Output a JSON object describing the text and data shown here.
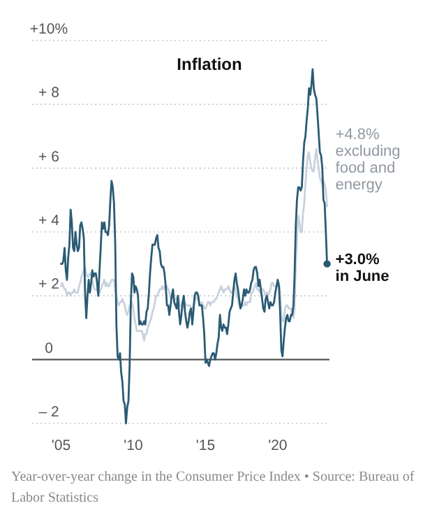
{
  "chart_data": {
    "type": "line",
    "title": "Inflation",
    "x": [
      "2005-01",
      "2005-02",
      "2005-03",
      "2005-04",
      "2005-05",
      "2005-06",
      "2005-07",
      "2005-08",
      "2005-09",
      "2005-10",
      "2005-11",
      "2005-12",
      "2006-01",
      "2006-02",
      "2006-03",
      "2006-04",
      "2006-05",
      "2006-06",
      "2006-07",
      "2006-08",
      "2006-09",
      "2006-10",
      "2006-11",
      "2006-12",
      "2007-01",
      "2007-02",
      "2007-03",
      "2007-04",
      "2007-05",
      "2007-06",
      "2007-07",
      "2007-08",
      "2007-09",
      "2007-10",
      "2007-11",
      "2007-12",
      "2008-01",
      "2008-02",
      "2008-03",
      "2008-04",
      "2008-05",
      "2008-06",
      "2008-07",
      "2008-08",
      "2008-09",
      "2008-10",
      "2008-11",
      "2008-12",
      "2009-01",
      "2009-02",
      "2009-03",
      "2009-04",
      "2009-05",
      "2009-06",
      "2009-07",
      "2009-08",
      "2009-09",
      "2009-10",
      "2009-11",
      "2009-12",
      "2010-01",
      "2010-02",
      "2010-03",
      "2010-04",
      "2010-05",
      "2010-06",
      "2010-07",
      "2010-08",
      "2010-09",
      "2010-10",
      "2010-11",
      "2010-12",
      "2011-01",
      "2011-02",
      "2011-03",
      "2011-04",
      "2011-05",
      "2011-06",
      "2011-07",
      "2011-08",
      "2011-09",
      "2011-10",
      "2011-11",
      "2011-12",
      "2012-01",
      "2012-02",
      "2012-03",
      "2012-04",
      "2012-05",
      "2012-06",
      "2012-07",
      "2012-08",
      "2012-09",
      "2012-10",
      "2012-11",
      "2012-12",
      "2013-01",
      "2013-02",
      "2013-03",
      "2013-04",
      "2013-05",
      "2013-06",
      "2013-07",
      "2013-08",
      "2013-09",
      "2013-10",
      "2013-11",
      "2013-12",
      "2014-01",
      "2014-02",
      "2014-03",
      "2014-04",
      "2014-05",
      "2014-06",
      "2014-07",
      "2014-08",
      "2014-09",
      "2014-10",
      "2014-11",
      "2014-12",
      "2015-01",
      "2015-02",
      "2015-03",
      "2015-04",
      "2015-05",
      "2015-06",
      "2015-07",
      "2015-08",
      "2015-09",
      "2015-10",
      "2015-11",
      "2015-12",
      "2016-01",
      "2016-02",
      "2016-03",
      "2016-04",
      "2016-05",
      "2016-06",
      "2016-07",
      "2016-08",
      "2016-09",
      "2016-10",
      "2016-11",
      "2016-12",
      "2017-01",
      "2017-02",
      "2017-03",
      "2017-04",
      "2017-05",
      "2017-06",
      "2017-07",
      "2017-08",
      "2017-09",
      "2017-10",
      "2017-11",
      "2017-12",
      "2018-01",
      "2018-02",
      "2018-03",
      "2018-04",
      "2018-05",
      "2018-06",
      "2018-07",
      "2018-08",
      "2018-09",
      "2018-10",
      "2018-11",
      "2018-12",
      "2019-01",
      "2019-02",
      "2019-03",
      "2019-04",
      "2019-05",
      "2019-06",
      "2019-07",
      "2019-08",
      "2019-09",
      "2019-10",
      "2019-11",
      "2019-12",
      "2020-01",
      "2020-02",
      "2020-03",
      "2020-04",
      "2020-05",
      "2020-06",
      "2020-07",
      "2020-08",
      "2020-09",
      "2020-10",
      "2020-11",
      "2020-12",
      "2021-01",
      "2021-02",
      "2021-03",
      "2021-04",
      "2021-05",
      "2021-06",
      "2021-07",
      "2021-08",
      "2021-09",
      "2021-10",
      "2021-11",
      "2021-12",
      "2022-01",
      "2022-02",
      "2022-03",
      "2022-04",
      "2022-05",
      "2022-06",
      "2022-07",
      "2022-08",
      "2022-09",
      "2022-10",
      "2022-11",
      "2022-12",
      "2023-01",
      "2023-02",
      "2023-03",
      "2023-04",
      "2023-05",
      "2023-06"
    ],
    "series": [
      {
        "color": "#c8d2de",
        "values": [
          2.3,
          2.4,
          2.3,
          2.2,
          2.2,
          2.0,
          2.1,
          2.1,
          2.0,
          2.1,
          2.1,
          2.2,
          2.1,
          2.1,
          2.1,
          2.3,
          2.4,
          2.6,
          2.7,
          2.8,
          2.9,
          2.7,
          2.6,
          2.6,
          2.7,
          2.7,
          2.5,
          2.3,
          2.2,
          2.2,
          2.2,
          2.1,
          2.1,
          2.2,
          2.3,
          2.4,
          2.5,
          2.3,
          2.4,
          2.3,
          2.3,
          2.4,
          2.5,
          2.5,
          2.5,
          2.2,
          2.0,
          1.8,
          1.7,
          1.8,
          1.8,
          1.9,
          1.8,
          1.7,
          1.5,
          1.4,
          1.5,
          1.7,
          1.7,
          1.8,
          1.6,
          1.3,
          1.1,
          0.9,
          0.9,
          0.9,
          0.9,
          0.9,
          0.8,
          0.6,
          0.8,
          0.8,
          1.0,
          1.1,
          1.2,
          1.3,
          1.5,
          1.6,
          1.8,
          2.0,
          2.0,
          2.1,
          2.2,
          2.2,
          2.3,
          2.2,
          2.3,
          2.3,
          2.3,
          2.2,
          2.1,
          1.9,
          2.0,
          2.0,
          1.9,
          1.9,
          1.9,
          2.0,
          1.9,
          1.7,
          1.7,
          1.6,
          1.7,
          1.8,
          1.7,
          1.7,
          1.7,
          1.7,
          1.6,
          1.6,
          1.7,
          1.8,
          2.0,
          1.9,
          1.9,
          1.7,
          1.7,
          1.8,
          1.7,
          1.6,
          1.6,
          1.7,
          1.8,
          1.8,
          1.7,
          1.8,
          1.8,
          1.8,
          1.9,
          1.9,
          2.0,
          2.1,
          2.2,
          2.3,
          2.2,
          2.1,
          2.2,
          2.2,
          2.2,
          2.3,
          2.2,
          2.1,
          2.1,
          2.2,
          2.3,
          2.2,
          2.0,
          1.9,
          1.7,
          1.7,
          1.7,
          1.7,
          1.7,
          1.8,
          1.7,
          1.8,
          1.8,
          1.8,
          2.1,
          2.1,
          2.2,
          2.3,
          2.4,
          2.2,
          2.2,
          2.1,
          2.2,
          2.2,
          2.2,
          2.1,
          2.0,
          2.1,
          2.0,
          2.1,
          2.2,
          2.4,
          2.4,
          2.3,
          2.3,
          2.3,
          2.3,
          2.4,
          2.1,
          1.4,
          1.2,
          1.2,
          1.6,
          1.7,
          1.7,
          1.6,
          1.6,
          1.6,
          1.4,
          1.3,
          1.6,
          3.0,
          3.8,
          4.5,
          4.3,
          4.0,
          4.0,
          4.6,
          4.9,
          5.5,
          6.0,
          6.4,
          6.5,
          6.2,
          6.0,
          5.9,
          5.9,
          6.3,
          6.6,
          6.3,
          6.0,
          5.7,
          5.6,
          5.5,
          5.6,
          5.5,
          5.3,
          4.8
        ]
      },
      {
        "color": "#2b5b74",
        "values": [
          3.0,
          3.0,
          3.1,
          3.5,
          2.8,
          2.5,
          3.2,
          3.6,
          4.7,
          4.3,
          3.5,
          3.4,
          4.0,
          3.6,
          3.4,
          3.5,
          4.2,
          4.3,
          4.1,
          3.8,
          2.1,
          1.3,
          2.0,
          2.5,
          2.1,
          2.4,
          2.8,
          2.6,
          2.7,
          2.7,
          2.4,
          2.0,
          2.8,
          3.5,
          4.3,
          4.1,
          4.3,
          4.0,
          4.0,
          3.9,
          4.2,
          5.0,
          5.6,
          5.4,
          4.9,
          3.7,
          1.1,
          0.1,
          0.0,
          0.2,
          -0.4,
          -0.7,
          -1.3,
          -1.4,
          -2.0,
          -1.5,
          -1.3,
          -0.2,
          1.8,
          2.7,
          2.6,
          2.1,
          2.3,
          2.2,
          2.0,
          1.1,
          1.2,
          1.1,
          1.1,
          1.2,
          1.1,
          1.5,
          1.6,
          2.1,
          2.7,
          3.2,
          3.6,
          3.6,
          3.6,
          3.8,
          3.9,
          3.5,
          3.4,
          3.0,
          2.9,
          2.9,
          2.7,
          2.3,
          1.7,
          1.7,
          1.4,
          1.7,
          2.0,
          2.2,
          1.8,
          1.7,
          1.6,
          2.0,
          1.5,
          1.1,
          1.4,
          1.8,
          2.0,
          1.5,
          1.2,
          1.0,
          1.2,
          1.5,
          1.6,
          1.1,
          1.5,
          2.0,
          2.1,
          2.1,
          2.0,
          1.7,
          1.7,
          1.7,
          1.3,
          0.8,
          -0.1,
          0.0,
          -0.1,
          -0.2,
          0.0,
          0.1,
          0.2,
          0.2,
          0.0,
          0.2,
          0.5,
          0.7,
          1.4,
          1.0,
          0.9,
          1.1,
          1.0,
          1.0,
          0.8,
          1.1,
          1.5,
          1.6,
          1.7,
          2.1,
          2.5,
          2.7,
          2.4,
          2.2,
          1.9,
          1.6,
          1.7,
          1.9,
          2.2,
          2.0,
          2.2,
          2.1,
          2.1,
          2.2,
          2.4,
          2.5,
          2.8,
          2.9,
          2.9,
          2.7,
          2.3,
          2.5,
          2.2,
          1.9,
          1.6,
          1.5,
          1.9,
          2.0,
          1.8,
          1.6,
          1.8,
          1.7,
          1.7,
          1.8,
          2.1,
          2.3,
          2.5,
          2.3,
          1.5,
          0.3,
          0.1,
          0.6,
          1.0,
          1.3,
          1.4,
          1.2,
          1.2,
          1.4,
          1.4,
          1.7,
          2.6,
          4.2,
          5.0,
          5.4,
          5.4,
          5.3,
          5.4,
          6.2,
          6.8,
          7.0,
          7.5,
          7.9,
          8.5,
          8.3,
          8.6,
          9.1,
          8.5,
          8.3,
          8.2,
          7.7,
          7.1,
          6.5,
          6.4,
          6.0,
          5.0,
          4.9,
          4.0,
          3.0
        ]
      }
    ],
    "xlim": [
      "2003-01",
      "2023-08"
    ],
    "xticks": [
      {
        "value": "2005-01",
        "label": "'05"
      },
      {
        "value": "2010-01",
        "label": "'10"
      },
      {
        "value": "2015-01",
        "label": "'15"
      },
      {
        "value": "2020-01",
        "label": "'20"
      }
    ],
    "ylim": [
      -2,
      10
    ],
    "yticks": [
      {
        "value": -2,
        "label": "– 2"
      },
      0,
      {
        "value": 2,
        "label": "+ 2"
      },
      {
        "value": 4,
        "label": "+ 4"
      },
      {
        "value": 6,
        "label": "+ 6"
      },
      {
        "value": 8,
        "label": "+ 8"
      },
      {
        "value": 10,
        "label": "+10%"
      }
    ],
    "grid": "y",
    "annotations": [
      {
        "text": "+4.8% excluding food and energy",
        "x": "2023-06",
        "y": 4.8
      },
      {
        "text": "+3.0% in June",
        "x": "2023-06",
        "y": 3.0
      },
      "Year-over-year change in the Consumer Price Index • Source: Bureau of Labor Statistics"
    ]
  }
}
